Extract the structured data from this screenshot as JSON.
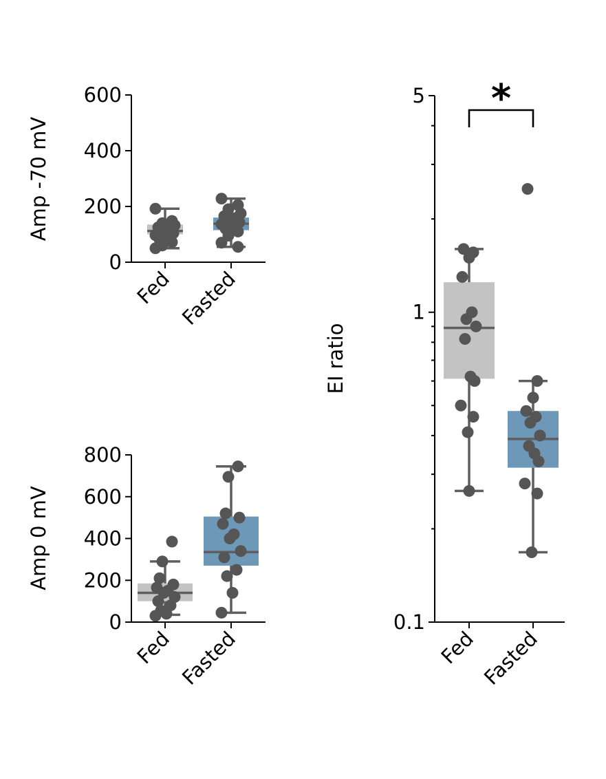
{
  "colors": {
    "fed": "#c3c3c3",
    "fasted": "#6d98b8",
    "points": "#555555",
    "whisker": "#5f5f5f"
  },
  "chart_data": [
    {
      "type": "box",
      "ylabel": "Amp -70 mV",
      "categories": [
        "Fed",
        "Fasted"
      ],
      "yscale": "linear",
      "ylim": [
        0,
        600
      ],
      "yticks": [
        0,
        200,
        400,
        600
      ],
      "ytick_labels": [
        "0",
        "200",
        "400",
        "600"
      ],
      "boxes": [
        {
          "name": "Fed",
          "q1": 100,
          "median": 112,
          "q3": 135,
          "whisker_low": 50,
          "whisker_high": 192
        },
        {
          "name": "Fasted",
          "q1": 115,
          "median": 138,
          "q3": 160,
          "whisker_low": 55,
          "whisker_high": 228
        }
      ],
      "points": [
        [
          192,
          148,
          140,
          132,
          125,
          118,
          110,
          104,
          97,
          90,
          82,
          72,
          60,
          50
        ],
        [
          228,
          205,
          190,
          175,
          165,
          158,
          150,
          143,
          136,
          128,
          120,
          110,
          95,
          70,
          55
        ]
      ]
    },
    {
      "type": "box",
      "ylabel": "Amp 0 mV",
      "categories": [
        "Fed",
        "Fasted"
      ],
      "yscale": "linear",
      "ylim": [
        0,
        800
      ],
      "yticks": [
        0,
        200,
        400,
        600,
        800
      ],
      "ytick_labels": [
        "0",
        "200",
        "400",
        "600",
        "800"
      ],
      "boxes": [
        {
          "name": "Fed",
          "q1": 100,
          "median": 140,
          "q3": 185,
          "whisker_low": 35,
          "whisker_high": 290
        },
        {
          "name": "Fasted",
          "q1": 270,
          "median": 335,
          "q3": 505,
          "whisker_low": 45,
          "whisker_high": 745
        }
      ],
      "points": [
        [
          385,
          290,
          210,
          180,
          165,
          150,
          140,
          120,
          100,
          80,
          55,
          40,
          30
        ],
        [
          745,
          695,
          520,
          500,
          470,
          420,
          400,
          340,
          310,
          250,
          220,
          140,
          45
        ]
      ]
    },
    {
      "type": "box",
      "ylabel": "EI ratio",
      "categories": [
        "Fed",
        "Fasted"
      ],
      "yscale": "log",
      "ylim": [
        0.1,
        5
      ],
      "yticks": [
        0.1,
        1,
        5
      ],
      "ytick_labels": [
        "0.1",
        "1",
        "5"
      ],
      "minor_ticks": [
        0.2,
        0.3,
        0.4,
        0.5,
        0.6,
        0.7,
        0.8,
        0.9,
        2,
        3,
        4
      ],
      "boxes": [
        {
          "name": "Fed",
          "q1": 0.61,
          "median": 0.89,
          "q3": 1.25,
          "whisker_low": 0.265,
          "whisker_high": 1.6
        },
        {
          "name": "Fasted",
          "q1": 0.315,
          "median": 0.39,
          "q3": 0.48,
          "whisker_low": 0.168,
          "whisker_high": 0.6
        }
      ],
      "points": [
        [
          1.6,
          1.56,
          1.5,
          1.3,
          1.0,
          0.95,
          0.9,
          0.82,
          0.62,
          0.6,
          0.5,
          0.46,
          0.41,
          0.265
        ],
        [
          2.5,
          0.6,
          0.53,
          0.48,
          0.46,
          0.44,
          0.4,
          0.37,
          0.35,
          0.33,
          0.28,
          0.26,
          0.168
        ]
      ],
      "annotation": {
        "text": "*",
        "between": [
          "Fed",
          "Fasted"
        ]
      }
    }
  ]
}
